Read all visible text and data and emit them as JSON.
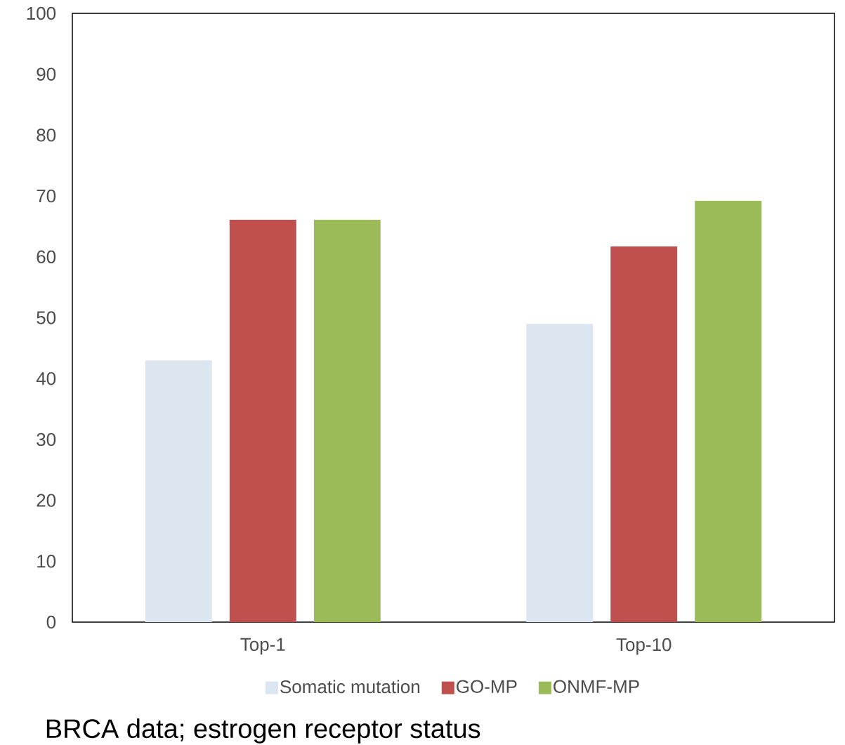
{
  "chart_data": {
    "type": "bar",
    "title": "BRCA data; estrogen receptor status",
    "categories": [
      "Top-1",
      "Top-10"
    ],
    "series": [
      {
        "name": "Somatic mutation",
        "color": "#dce6f1",
        "values": [
          43.0,
          49.0
        ]
      },
      {
        "name": "GO-MP",
        "color": "#c0504d",
        "values": [
          66.1,
          61.7
        ]
      },
      {
        "name": "ONMF-MP",
        "color": "#9bbb59",
        "values": [
          66.1,
          69.2
        ]
      }
    ],
    "ylim": [
      0,
      100
    ],
    "yticks": [
      0,
      10,
      20,
      30,
      40,
      50,
      60,
      70,
      80,
      90,
      100
    ],
    "legend": "bottom"
  }
}
